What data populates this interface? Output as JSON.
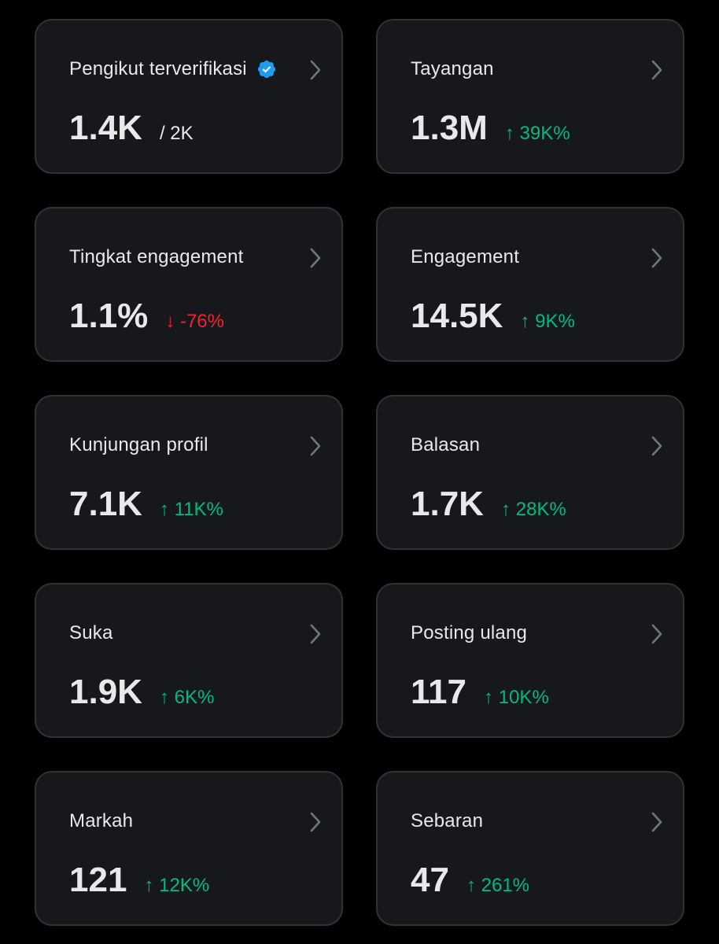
{
  "colors": {
    "background": "#000000",
    "card": "#16181c",
    "card_border": "#2f3336",
    "text": "#e7e9ea",
    "chevron": "#71767b",
    "positive": "#00ba7c",
    "negative": "#f4212e",
    "verified": "#1d9bf0"
  },
  "cards": [
    {
      "label": "Pengikut terverifikasi",
      "value": "1.4K",
      "sub": "/ 2K",
      "change": "",
      "icon": "verified-badge-icon"
    },
    {
      "label": "Tayangan",
      "value": "1.3M",
      "sub": "",
      "change": "↑ 39K%",
      "trend": "up"
    },
    {
      "label": "Tingkat engagement",
      "value": "1.1%",
      "sub": "",
      "change": "↓ -76%",
      "trend": "down"
    },
    {
      "label": "Engagement",
      "value": "14.5K",
      "sub": "",
      "change": "↑ 9K%",
      "trend": "up"
    },
    {
      "label": "Kunjungan profil",
      "value": "7.1K",
      "sub": "",
      "change": "↑ 11K%",
      "trend": "up"
    },
    {
      "label": "Balasan",
      "value": "1.7K",
      "sub": "",
      "change": "↑ 28K%",
      "trend": "up"
    },
    {
      "label": "Suka",
      "value": "1.9K",
      "sub": "",
      "change": "↑ 6K%",
      "trend": "up"
    },
    {
      "label": "Posting ulang",
      "value": "117",
      "sub": "",
      "change": "↑ 10K%",
      "trend": "up"
    },
    {
      "label": "Markah",
      "value": "121",
      "sub": "",
      "change": "↑ 12K%",
      "trend": "up"
    },
    {
      "label": "Sebaran",
      "value": "47",
      "sub": "",
      "change": "↑ 261%",
      "trend": "up"
    }
  ]
}
